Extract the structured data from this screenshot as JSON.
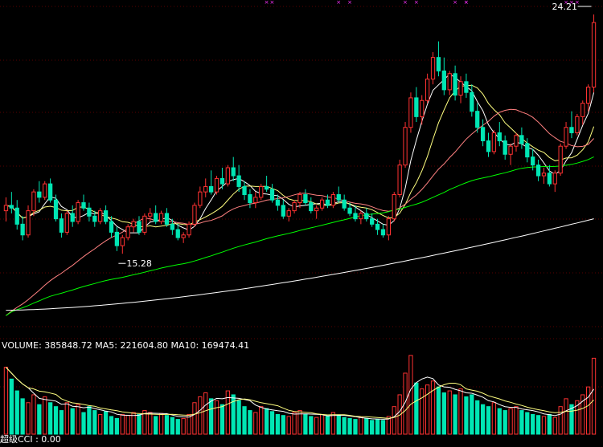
{
  "chart_data": [
    {
      "type": "candlestick",
      "price_labels": {
        "low_marker": "15.28",
        "high_marker": "24.21"
      },
      "ylim": [
        12.5,
        24.5
      ],
      "grid": true,
      "colors": {
        "up": "#ff3232",
        "down": "#00e6b4",
        "ma5": "#ffffff",
        "ma10": "#ffff80",
        "ma20": "#ff8080",
        "ma60": "#00ff00",
        "ma250": "#ffffff",
        "grid": "#5a0000"
      },
      "candles": [
        [
          16.9,
          17.4,
          16.5,
          17.1
        ],
        [
          17.1,
          17.6,
          16.8,
          17.0
        ],
        [
          17.0,
          17.3,
          16.2,
          16.4
        ],
        [
          16.4,
          16.7,
          15.8,
          16.0
        ],
        [
          16.0,
          17.1,
          15.9,
          16.9
        ],
        [
          16.9,
          17.7,
          16.7,
          17.6
        ],
        [
          17.6,
          18.0,
          17.2,
          17.4
        ],
        [
          17.4,
          18.0,
          17.3,
          17.9
        ],
        [
          17.9,
          18.1,
          17.2,
          17.3
        ],
        [
          17.3,
          17.5,
          16.5,
          16.6
        ],
        [
          16.6,
          16.8,
          15.9,
          16.1
        ],
        [
          16.1,
          16.9,
          16.0,
          16.8
        ],
        [
          16.8,
          17.1,
          16.3,
          16.5
        ],
        [
          16.5,
          17.3,
          16.4,
          17.2
        ],
        [
          17.2,
          17.5,
          16.9,
          17.0
        ],
        [
          17.0,
          17.2,
          16.5,
          16.7
        ],
        [
          16.7,
          16.9,
          16.3,
          16.5
        ],
        [
          16.5,
          17.0,
          16.4,
          16.9
        ],
        [
          16.9,
          17.1,
          16.4,
          16.5
        ],
        [
          16.5,
          16.7,
          15.9,
          16.1
        ],
        [
          16.1,
          16.3,
          15.4,
          15.6
        ],
        [
          15.6,
          16.0,
          15.3,
          15.9
        ],
        [
          15.9,
          16.4,
          15.8,
          16.3
        ],
        [
          16.3,
          16.6,
          16.1,
          16.5
        ],
        [
          16.5,
          16.7,
          16.0,
          16.1
        ],
        [
          16.1,
          16.8,
          16.0,
          16.7
        ],
        [
          16.7,
          17.0,
          16.5,
          16.8
        ],
        [
          16.8,
          17.1,
          16.4,
          16.5
        ],
        [
          16.5,
          16.9,
          16.4,
          16.8
        ],
        [
          16.8,
          17.0,
          16.3,
          16.4
        ],
        [
          16.4,
          16.6,
          16.0,
          16.2
        ],
        [
          16.2,
          16.4,
          15.8,
          15.9
        ],
        [
          15.9,
          16.1,
          15.7,
          16.0
        ],
        [
          16.0,
          16.5,
          15.9,
          16.4
        ],
        [
          16.4,
          17.2,
          16.3,
          17.1
        ],
        [
          17.1,
          17.8,
          17.0,
          17.6
        ],
        [
          17.6,
          18.1,
          17.4,
          17.8
        ],
        [
          17.8,
          18.4,
          17.5,
          17.6
        ],
        [
          17.6,
          18.2,
          17.5,
          18.1
        ],
        [
          18.1,
          18.5,
          17.7,
          17.9
        ],
        [
          17.9,
          18.6,
          17.8,
          18.5
        ],
        [
          18.5,
          18.9,
          18.0,
          18.2
        ],
        [
          18.2,
          18.6,
          17.6,
          17.8
        ],
        [
          17.8,
          18.0,
          17.3,
          17.5
        ],
        [
          17.5,
          17.7,
          17.0,
          17.2
        ],
        [
          17.2,
          17.6,
          17.0,
          17.4
        ],
        [
          17.4,
          17.9,
          17.3,
          17.8
        ],
        [
          17.8,
          18.2,
          17.6,
          17.7
        ],
        [
          17.7,
          17.9,
          17.2,
          17.3
        ],
        [
          17.3,
          17.5,
          16.9,
          17.1
        ],
        [
          17.1,
          17.3,
          16.6,
          16.7
        ],
        [
          16.7,
          17.0,
          16.5,
          16.9
        ],
        [
          16.9,
          17.3,
          16.8,
          17.2
        ],
        [
          17.2,
          17.6,
          17.0,
          17.5
        ],
        [
          17.5,
          17.7,
          17.1,
          17.2
        ],
        [
          17.2,
          17.4,
          16.8,
          16.9
        ],
        [
          16.9,
          17.1,
          16.6,
          17.0
        ],
        [
          17.0,
          17.4,
          16.9,
          17.3
        ],
        [
          17.3,
          17.5,
          17.0,
          17.1
        ],
        [
          17.1,
          17.6,
          17.0,
          17.5
        ],
        [
          17.5,
          17.8,
          17.2,
          17.3
        ],
        [
          17.3,
          17.5,
          16.9,
          17.0
        ],
        [
          17.0,
          17.2,
          16.7,
          16.8
        ],
        [
          16.8,
          17.1,
          16.5,
          16.6
        ],
        [
          16.6,
          16.9,
          16.4,
          16.8
        ],
        [
          16.8,
          17.0,
          16.5,
          16.6
        ],
        [
          16.6,
          16.8,
          16.3,
          16.4
        ],
        [
          16.4,
          16.6,
          16.0,
          16.2
        ],
        [
          16.2,
          16.4,
          15.9,
          16.0
        ],
        [
          16.0,
          16.7,
          15.8,
          16.6
        ],
        [
          16.6,
          17.6,
          16.5,
          17.5
        ],
        [
          17.5,
          18.8,
          17.4,
          18.6
        ],
        [
          18.6,
          20.2,
          18.5,
          20.0
        ],
        [
          20.0,
          21.3,
          19.8,
          21.1
        ],
        [
          21.1,
          21.5,
          20.2,
          20.4
        ],
        [
          20.4,
          21.2,
          20.1,
          21.0
        ],
        [
          21.0,
          22.0,
          20.9,
          21.8
        ],
        [
          21.8,
          22.8,
          21.6,
          22.6
        ],
        [
          22.6,
          23.2,
          21.9,
          22.1
        ],
        [
          22.1,
          22.6,
          21.2,
          21.4
        ],
        [
          21.4,
          22.1,
          21.2,
          22.0
        ],
        [
          22.0,
          22.3,
          21.0,
          21.2
        ],
        [
          21.2,
          21.9,
          20.9,
          21.7
        ],
        [
          21.7,
          22.0,
          21.1,
          21.3
        ],
        [
          21.3,
          21.6,
          20.4,
          20.6
        ],
        [
          20.6,
          20.9,
          19.8,
          20.0
        ],
        [
          20.0,
          20.3,
          19.3,
          19.5
        ],
        [
          19.5,
          19.8,
          18.9,
          19.1
        ],
        [
          19.1,
          19.9,
          19.0,
          19.8
        ],
        [
          19.8,
          20.2,
          19.3,
          19.5
        ],
        [
          19.5,
          19.7,
          18.8,
          19.0
        ],
        [
          19.0,
          19.4,
          18.6,
          19.3
        ],
        [
          19.3,
          19.8,
          19.1,
          19.7
        ],
        [
          19.7,
          20.0,
          19.2,
          19.4
        ],
        [
          19.4,
          19.6,
          18.7,
          18.9
        ],
        [
          18.9,
          19.2,
          18.4,
          18.6
        ],
        [
          18.6,
          18.8,
          18.0,
          18.2
        ],
        [
          18.2,
          18.5,
          17.9,
          18.3
        ],
        [
          18.3,
          18.6,
          17.8,
          17.9
        ],
        [
          17.9,
          18.4,
          17.6,
          18.3
        ],
        [
          18.3,
          19.4,
          18.2,
          19.3
        ],
        [
          19.3,
          20.2,
          19.2,
          20.0
        ],
        [
          20.0,
          20.6,
          19.6,
          19.8
        ],
        [
          19.8,
          20.5,
          19.7,
          20.4
        ],
        [
          20.4,
          21.0,
          20.1,
          20.9
        ],
        [
          20.9,
          21.6,
          20.6,
          21.5
        ],
        [
          21.5,
          24.2,
          21.3,
          23.9
        ]
      ],
      "moving_averages": [
        {
          "key": "ma5",
          "period": 5
        },
        {
          "key": "ma10",
          "period": 10
        },
        {
          "key": "ma20",
          "period": 20
        },
        {
          "key": "ma60",
          "period": 60
        },
        {
          "key": "ma250",
          "period": 250
        }
      ],
      "long_ma_anchor": {
        "ma60_start": 13.0,
        "ma250_start": 13.2,
        "ma250_end": 16.6
      }
    },
    {
      "type": "bar",
      "indicator": "VOLUME",
      "legend": {
        "label": "VOLUME: 385848.72",
        "ma5": "MA5: 221604.80",
        "ma10": "MA10: 169474.41"
      },
      "volume_scale_max": 420000,
      "volumes": [
        340000,
        280000,
        220000,
        180000,
        160000,
        200000,
        150000,
        190000,
        160000,
        140000,
        120000,
        160000,
        130000,
        150000,
        110000,
        140000,
        120000,
        100000,
        115000,
        90000,
        80000,
        100000,
        95000,
        110000,
        100000,
        120000,
        110000,
        90000,
        105000,
        95000,
        85000,
        75000,
        80000,
        100000,
        160000,
        190000,
        210000,
        180000,
        170000,
        150000,
        220000,
        200000,
        170000,
        140000,
        120000,
        110000,
        140000,
        130000,
        115000,
        100000,
        95000,
        90000,
        110000,
        120000,
        100000,
        90000,
        85000,
        100000,
        90000,
        110000,
        95000,
        85000,
        80000,
        75000,
        85000,
        80000,
        70000,
        75000,
        70000,
        90000,
        140000,
        200000,
        310000,
        400000,
        260000,
        230000,
        250000,
        270000,
        240000,
        210000,
        220000,
        200000,
        230000,
        190000,
        200000,
        170000,
        150000,
        140000,
        160000,
        130000,
        120000,
        130000,
        140000,
        120000,
        110000,
        100000,
        95000,
        90000,
        100000,
        85000,
        140000,
        180000,
        150000,
        170000,
        200000,
        240000,
        385848
      ]
    },
    {
      "type": "line",
      "indicator": "CCI",
      "legend": {
        "label": "超级CCI : 0.00"
      }
    }
  ]
}
